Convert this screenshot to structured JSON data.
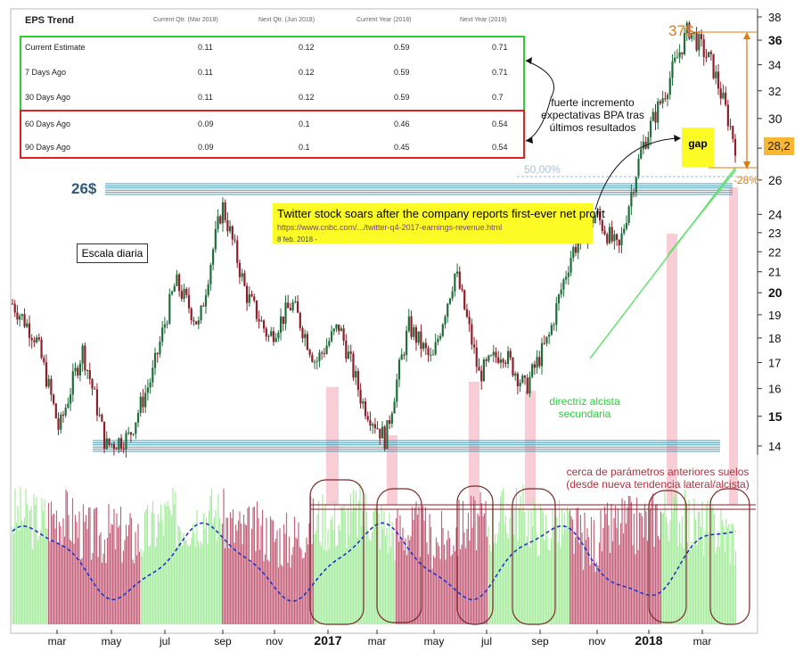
{
  "eps_table": {
    "title": "EPS Trend",
    "columns": [
      "Current Qtr. (Mar 2018)",
      "Next Qtr. (Jun 2018)",
      "Current Year (2018)",
      "Next Year (2019)"
    ],
    "rows": [
      {
        "label": "Current Estimate",
        "values": [
          "0.11",
          "0.12",
          "0.59",
          "0.71"
        ]
      },
      {
        "label": "7 Days Ago",
        "values": [
          "0.11",
          "0.12",
          "0.59",
          "0.71"
        ]
      },
      {
        "label": "30 Days Ago",
        "values": [
          "0.11",
          "0.12",
          "0.59",
          "0.7"
        ]
      },
      {
        "label": "60 Days Ago",
        "values": [
          "0.09",
          "0.1",
          "0.46",
          "0.54"
        ]
      },
      {
        "label": "90 Days Ago",
        "values": [
          "0.09",
          "0.1",
          "0.45",
          "0.54"
        ]
      }
    ],
    "green_box_color": "#2ecc2e",
    "red_box_color": "#e02020"
  },
  "annotations": {
    "eps_note": "fuerte incremento expectativas BPA tras últimos resultados",
    "news_title": "Twitter stock soars after the company reports first-ever net profit",
    "news_url": "https://www.cnbc.com/.../twitter-q4-2017-earnings-revenue.html",
    "news_date": "8 feb. 2018 -",
    "scale_label": "Escala diaria",
    "gap_label": "gap",
    "resistance_label": "26$",
    "high_label": "37$",
    "fib_label": "50,00%",
    "drawdown_label": "-28%",
    "current_price": "28,2",
    "trendline_label": "directriz alcista secundaria",
    "oscillator_note": "cerca de parámetros anteriores suelos (desde nueva tendencia lateral/alcista)"
  },
  "colors": {
    "up_candle": "#1f6e3a",
    "down_candle": "#8e1e2a",
    "osc_red": "#c6647e",
    "osc_green": "#a7ec9e",
    "osc_signal": "#2233cc",
    "support_lines": "#4a9ab5",
    "trendline": "#66e070",
    "pink_bands": "#f7c4cf",
    "orange": "#e07b12",
    "circles": "#7b2a2a"
  },
  "chart_data": {
    "type": "candlestick",
    "scale": "log",
    "y_ticks": [
      "38",
      "36",
      "34",
      "32",
      "30",
      "28",
      "26",
      "24",
      "23",
      "22",
      "21",
      "20",
      "19",
      "18",
      "17",
      "16",
      "15",
      "14"
    ],
    "x_ticks": [
      "mar",
      "may",
      "jul",
      "sep",
      "nov",
      "2017",
      "mar",
      "may",
      "jul",
      "sep",
      "nov",
      "2018",
      "mar"
    ],
    "close_series": [
      19.5,
      18.0,
      14.5,
      17.5,
      14.0,
      14.3,
      16.5,
      20.5,
      18.5,
      24.5,
      20.0,
      18.0,
      19.5,
      17.0,
      18.5,
      15.5,
      14.2,
      18.5,
      17.0,
      21.0,
      16.5,
      17.5,
      16.0,
      18.0,
      22.0,
      24.0,
      22.0,
      28.0,
      32.0,
      37.0,
      34.0,
      28.2
    ],
    "support_top": 26,
    "support_bottom": 14,
    "high_level": 37,
    "current_level": 28.2,
    "drawdown_pct": -28
  }
}
